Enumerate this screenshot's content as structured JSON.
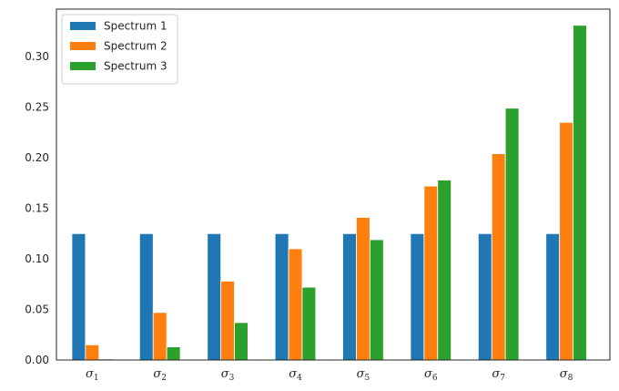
{
  "chart_data": {
    "type": "bar",
    "categories": [
      {
        "base": "σ",
        "sub": "1"
      },
      {
        "base": "σ",
        "sub": "2"
      },
      {
        "base": "σ",
        "sub": "3"
      },
      {
        "base": "σ",
        "sub": "4"
      },
      {
        "base": "σ",
        "sub": "5"
      },
      {
        "base": "σ",
        "sub": "6"
      },
      {
        "base": "σ",
        "sub": "7"
      },
      {
        "base": "σ",
        "sub": "8"
      }
    ],
    "series": [
      {
        "name": "Spectrum 1",
        "color": "#1f77b4",
        "values": [
          0.125,
          0.125,
          0.125,
          0.125,
          0.125,
          0.125,
          0.125,
          0.125
        ]
      },
      {
        "name": "Spectrum 2",
        "color": "#ff7f0e",
        "values": [
          0.015,
          0.047,
          0.078,
          0.11,
          0.141,
          0.172,
          0.204,
          0.235
        ]
      },
      {
        "name": "Spectrum 3",
        "color": "#2ca02c",
        "values": [
          0.001,
          0.013,
          0.037,
          0.072,
          0.119,
          0.178,
          0.249,
          0.331
        ]
      }
    ],
    "title": "",
    "xlabel": "",
    "ylabel": "",
    "ylim": [
      0,
      0.347
    ],
    "yticks": [
      "0.00",
      "0.05",
      "0.10",
      "0.15",
      "0.20",
      "0.25",
      "0.30"
    ],
    "grid": false,
    "legend_position": "top-left"
  }
}
